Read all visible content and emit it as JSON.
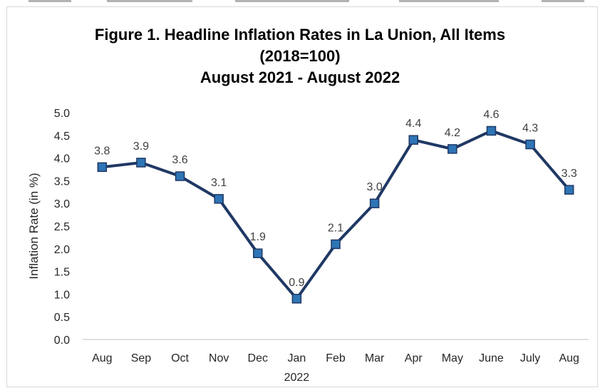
{
  "chart_data": {
    "type": "line",
    "title": [
      "Figure 1. Headline Inflation Rates in La Union, All Items",
      "(2018=100)",
      "August 2021 - August 2022"
    ],
    "ylabel": "Inflation Rate (in %)",
    "ylim": [
      0,
      5
    ],
    "yticks": [
      "0.0",
      "0.5",
      "1.0",
      "1.5",
      "2.0",
      "2.5",
      "3.0",
      "3.5",
      "4.0",
      "4.5",
      "5.0"
    ],
    "categories": [
      "Aug",
      "Sep",
      "Oct",
      "Nov",
      "Dec",
      "Jan",
      "Feb",
      "Mar",
      "Apr",
      "May",
      "June",
      "July",
      "Aug"
    ],
    "year_label": "2022",
    "series": [
      {
        "values": [
          3.8,
          3.9,
          3.6,
          3.1,
          1.9,
          0.9,
          2.1,
          3.0,
          4.4,
          4.2,
          4.6,
          4.3,
          3.3
        ],
        "labels": [
          "3.8",
          "3.9",
          "3.6",
          "3.1",
          "1.9",
          "0.9",
          "2.1",
          "3.0",
          "4.4",
          "4.2",
          "4.6",
          "4.3",
          "3.3"
        ]
      }
    ],
    "grid": false,
    "legend": "none",
    "line_color": "#1f3864",
    "marker_color": "#2e75b6"
  }
}
